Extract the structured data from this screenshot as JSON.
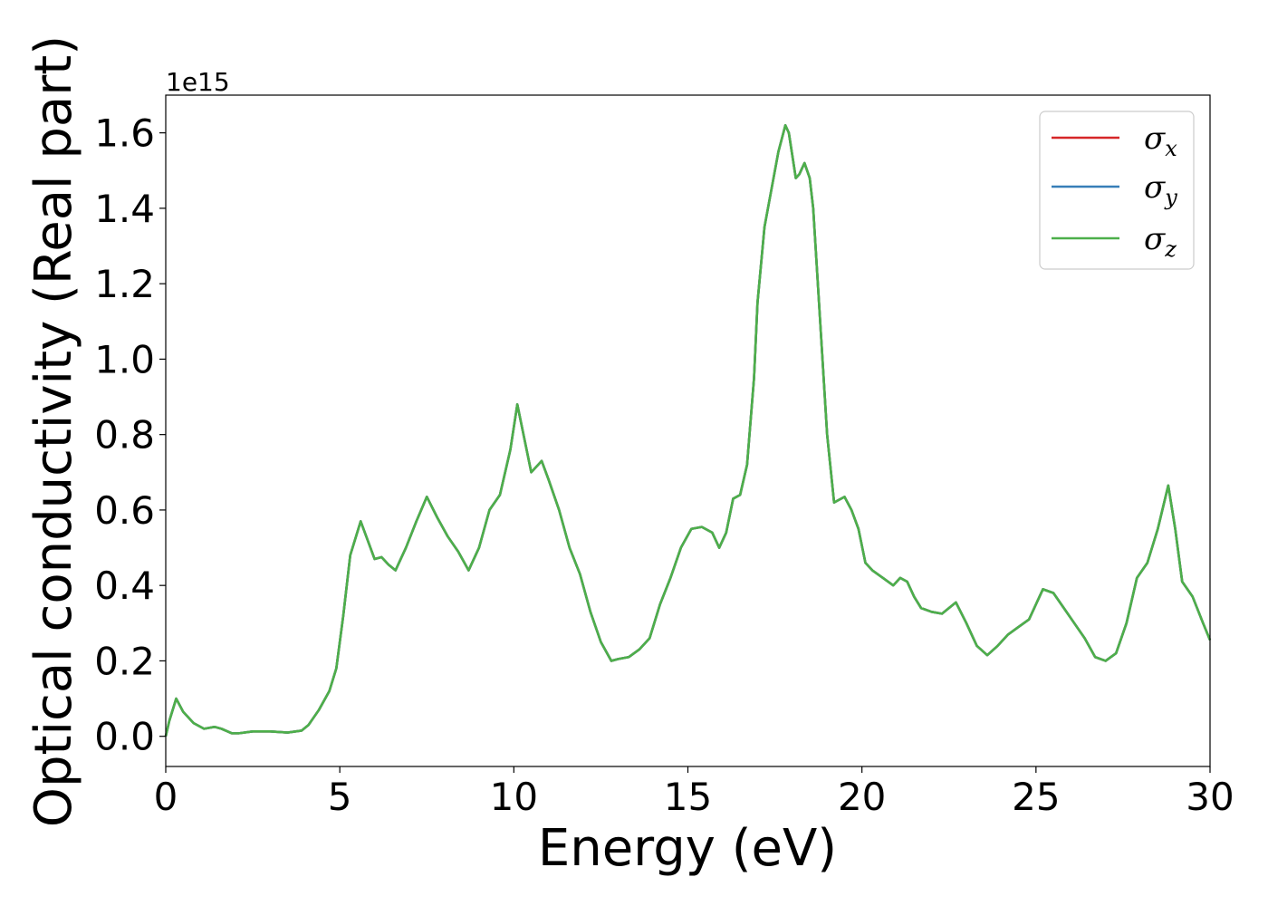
{
  "chart_data": {
    "type": "line",
    "xlabel": "Energy (eV)",
    "ylabel": "Optical conductivity (Real part)",
    "y_offset_label": "1e15",
    "xlim": [
      0,
      30
    ],
    "ylim": [
      -0.08,
      1.7
    ],
    "x_ticks": [
      0,
      5,
      10,
      15,
      20,
      25,
      30
    ],
    "x_tick_labels": [
      "0",
      "5",
      "10",
      "15",
      "20",
      "25",
      "30"
    ],
    "y_ticks": [
      0.0,
      0.2,
      0.4,
      0.6,
      0.8,
      1.0,
      1.2,
      1.4,
      1.6
    ],
    "y_tick_labels": [
      "0.0",
      "0.2",
      "0.4",
      "0.6",
      "0.8",
      "1.0",
      "1.2",
      "1.4",
      "1.6"
    ],
    "grid": false,
    "legend_position": "top-right",
    "x": [
      0.0,
      0.1,
      0.3,
      0.5,
      0.8,
      1.1,
      1.4,
      1.6,
      1.9,
      2.1,
      2.5,
      3.0,
      3.5,
      3.9,
      4.1,
      4.4,
      4.7,
      4.9,
      5.1,
      5.3,
      5.6,
      5.8,
      6.0,
      6.2,
      6.4,
      6.6,
      6.9,
      7.2,
      7.5,
      7.8,
      8.1,
      8.4,
      8.7,
      9.0,
      9.3,
      9.6,
      9.9,
      10.1,
      10.3,
      10.5,
      10.8,
      11.0,
      11.3,
      11.6,
      11.9,
      12.2,
      12.5,
      12.8,
      13.0,
      13.3,
      13.6,
      13.9,
      14.2,
      14.5,
      14.8,
      15.1,
      15.4,
      15.7,
      15.9,
      16.1,
      16.3,
      16.5,
      16.7,
      16.9,
      17.0,
      17.2,
      17.4,
      17.6,
      17.8,
      17.9,
      18.0,
      18.1,
      18.2,
      18.35,
      18.5,
      18.6,
      18.8,
      19.0,
      19.2,
      19.5,
      19.7,
      19.9,
      20.1,
      20.3,
      20.6,
      20.9,
      21.1,
      21.3,
      21.5,
      21.7,
      22.0,
      22.3,
      22.7,
      23.0,
      23.3,
      23.6,
      23.9,
      24.2,
      24.5,
      24.8,
      25.0,
      25.2,
      25.5,
      25.8,
      26.1,
      26.4,
      26.7,
      27.0,
      27.3,
      27.6,
      27.9,
      28.2,
      28.5,
      28.8,
      29.0,
      29.2,
      29.5,
      29.8,
      30.0
    ],
    "series": [
      {
        "name": "σx",
        "color": "#d62728",
        "values": [
          0.0,
          0.04,
          0.1,
          0.065,
          0.035,
          0.02,
          0.025,
          0.02,
          0.008,
          0.008,
          0.013,
          0.013,
          0.01,
          0.015,
          0.03,
          0.07,
          0.12,
          0.18,
          0.32,
          0.48,
          0.57,
          0.52,
          0.47,
          0.475,
          0.455,
          0.44,
          0.5,
          0.57,
          0.635,
          0.58,
          0.53,
          0.49,
          0.44,
          0.5,
          0.6,
          0.64,
          0.76,
          0.88,
          0.79,
          0.7,
          0.73,
          0.68,
          0.6,
          0.5,
          0.43,
          0.33,
          0.25,
          0.2,
          0.205,
          0.21,
          0.23,
          0.26,
          0.35,
          0.42,
          0.5,
          0.55,
          0.555,
          0.54,
          0.5,
          0.54,
          0.63,
          0.64,
          0.72,
          0.95,
          1.15,
          1.35,
          1.45,
          1.55,
          1.62,
          1.6,
          1.54,
          1.48,
          1.49,
          1.52,
          1.48,
          1.4,
          1.1,
          0.8,
          0.62,
          0.635,
          0.6,
          0.55,
          0.46,
          0.44,
          0.42,
          0.4,
          0.42,
          0.41,
          0.37,
          0.34,
          0.33,
          0.325,
          0.355,
          0.3,
          0.24,
          0.215,
          0.24,
          0.27,
          0.29,
          0.31,
          0.35,
          0.39,
          0.38,
          0.34,
          0.3,
          0.26,
          0.21,
          0.2,
          0.22,
          0.3,
          0.42,
          0.46,
          0.55,
          0.665,
          0.55,
          0.41,
          0.37,
          0.3,
          0.255
        ]
      },
      {
        "name": "σy",
        "color": "#377eb8",
        "values": [
          0.0,
          0.04,
          0.1,
          0.065,
          0.035,
          0.02,
          0.025,
          0.02,
          0.008,
          0.008,
          0.013,
          0.013,
          0.01,
          0.015,
          0.03,
          0.07,
          0.12,
          0.18,
          0.32,
          0.48,
          0.57,
          0.52,
          0.47,
          0.475,
          0.455,
          0.44,
          0.5,
          0.57,
          0.635,
          0.58,
          0.53,
          0.49,
          0.44,
          0.5,
          0.6,
          0.64,
          0.76,
          0.88,
          0.79,
          0.7,
          0.73,
          0.68,
          0.6,
          0.5,
          0.43,
          0.33,
          0.25,
          0.2,
          0.205,
          0.21,
          0.23,
          0.26,
          0.35,
          0.42,
          0.5,
          0.55,
          0.555,
          0.54,
          0.5,
          0.54,
          0.63,
          0.64,
          0.72,
          0.95,
          1.15,
          1.35,
          1.45,
          1.55,
          1.62,
          1.6,
          1.54,
          1.48,
          1.49,
          1.52,
          1.48,
          1.4,
          1.1,
          0.8,
          0.62,
          0.635,
          0.6,
          0.55,
          0.46,
          0.44,
          0.42,
          0.4,
          0.42,
          0.41,
          0.37,
          0.34,
          0.33,
          0.325,
          0.355,
          0.3,
          0.24,
          0.215,
          0.24,
          0.27,
          0.29,
          0.31,
          0.35,
          0.39,
          0.38,
          0.34,
          0.3,
          0.26,
          0.21,
          0.2,
          0.22,
          0.3,
          0.42,
          0.46,
          0.55,
          0.665,
          0.55,
          0.41,
          0.37,
          0.3,
          0.255
        ]
      },
      {
        "name": "σz",
        "color": "#4daf4a",
        "values": [
          0.0,
          0.04,
          0.1,
          0.065,
          0.035,
          0.02,
          0.025,
          0.02,
          0.008,
          0.008,
          0.013,
          0.013,
          0.01,
          0.015,
          0.03,
          0.07,
          0.12,
          0.18,
          0.32,
          0.48,
          0.57,
          0.52,
          0.47,
          0.475,
          0.455,
          0.44,
          0.5,
          0.57,
          0.635,
          0.58,
          0.53,
          0.49,
          0.44,
          0.5,
          0.6,
          0.64,
          0.76,
          0.88,
          0.79,
          0.7,
          0.73,
          0.68,
          0.6,
          0.5,
          0.43,
          0.33,
          0.25,
          0.2,
          0.205,
          0.21,
          0.23,
          0.26,
          0.35,
          0.42,
          0.5,
          0.55,
          0.555,
          0.54,
          0.5,
          0.54,
          0.63,
          0.64,
          0.72,
          0.95,
          1.15,
          1.35,
          1.45,
          1.55,
          1.62,
          1.6,
          1.54,
          1.48,
          1.49,
          1.52,
          1.48,
          1.4,
          1.1,
          0.8,
          0.62,
          0.635,
          0.6,
          0.55,
          0.46,
          0.44,
          0.42,
          0.4,
          0.42,
          0.41,
          0.37,
          0.34,
          0.33,
          0.325,
          0.355,
          0.3,
          0.24,
          0.215,
          0.24,
          0.27,
          0.29,
          0.31,
          0.35,
          0.39,
          0.38,
          0.34,
          0.3,
          0.26,
          0.21,
          0.2,
          0.22,
          0.3,
          0.42,
          0.46,
          0.55,
          0.665,
          0.55,
          0.41,
          0.37,
          0.3,
          0.255
        ]
      }
    ],
    "legend": [
      {
        "symbol": "σ",
        "sub": "x"
      },
      {
        "symbol": "σ",
        "sub": "y"
      },
      {
        "symbol": "σ",
        "sub": "z"
      }
    ]
  }
}
